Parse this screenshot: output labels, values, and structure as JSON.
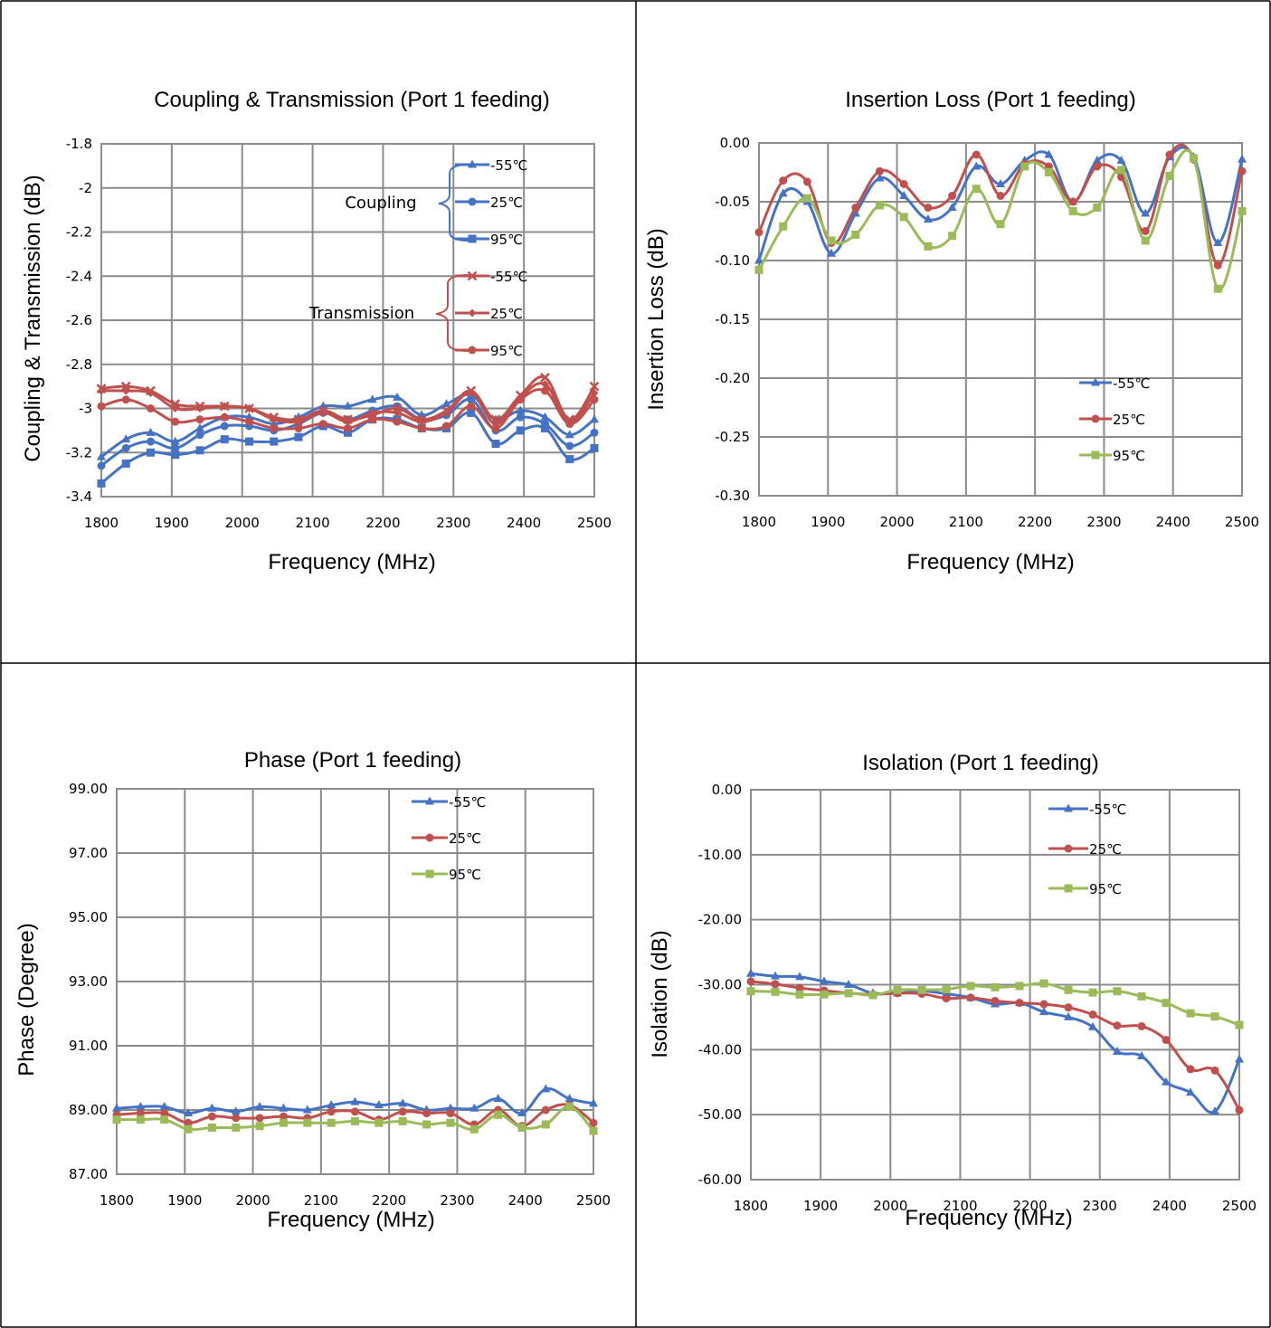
{
  "colors": {
    "blue": "#4472C4",
    "red": "#C0504D",
    "green": "#9BBB59",
    "grid": "#8c8c8c"
  },
  "chart_data": [
    {
      "id": "coupling",
      "type": "line",
      "title": "Coupling & Transmission (Port 1 feeding)",
      "xlabel": "Frequency (MHz)",
      "ylabel": "Coupling & Transmission (dB)",
      "xlim": [
        1800,
        2500
      ],
      "ylim": [
        -3.4,
        -1.8
      ],
      "xticks": [
        1800,
        1900,
        2000,
        2100,
        2200,
        2300,
        2400,
        2500
      ],
      "yticks": [
        -1.8,
        -2,
        -2.2,
        -2.4,
        -2.6,
        -2.8,
        -3,
        -3.2,
        -3.4
      ],
      "ytick_labels": [
        "-1.8",
        "-2",
        "-2.2",
        "-2.4",
        "-2.6",
        "-2.8",
        "-3",
        "-3.2",
        "-3.4"
      ],
      "grid": true,
      "legend_position": "top-right",
      "x": [
        1800,
        1835,
        1870,
        1905,
        1940,
        1975,
        2010,
        2045,
        2080,
        2115,
        2150,
        2185,
        2220,
        2255,
        2290,
        2325,
        2360,
        2395,
        2430,
        2465,
        2500
      ],
      "group_labels": [
        "Coupling",
        "Transmission"
      ],
      "series": [
        {
          "name": "-55℃",
          "group": "Coupling",
          "color": "blue",
          "marker": "triangle",
          "values": [
            -3.22,
            -3.14,
            -3.11,
            -3.15,
            -3.09,
            -3.04,
            -3.04,
            -3.07,
            -3.04,
            -2.99,
            -2.99,
            -2.96,
            -2.95,
            -3.03,
            -2.98,
            -2.94,
            -3.05,
            -3.01,
            -3.04,
            -3.12,
            -3.05
          ]
        },
        {
          "name": "25℃",
          "group": "Coupling",
          "color": "blue",
          "marker": "circle",
          "values": [
            -3.26,
            -3.18,
            -3.15,
            -3.18,
            -3.12,
            -3.08,
            -3.08,
            -3.1,
            -3.07,
            -3.02,
            -3.05,
            -3.01,
            -2.99,
            -3.05,
            -3.03,
            -2.96,
            -3.1,
            -3.04,
            -3.07,
            -3.17,
            -3.11
          ]
        },
        {
          "name": "95℃",
          "group": "Coupling",
          "color": "blue",
          "marker": "square",
          "values": [
            -3.34,
            -3.25,
            -3.2,
            -3.21,
            -3.19,
            -3.14,
            -3.15,
            -3.15,
            -3.13,
            -3.08,
            -3.11,
            -3.05,
            -3.05,
            -3.09,
            -3.09,
            -3.02,
            -3.16,
            -3.1,
            -3.09,
            -3.23,
            -3.18
          ]
        },
        {
          "name": "-55℃",
          "group": "Transmission",
          "color": "red",
          "marker": "x",
          "values": [
            -2.91,
            -2.9,
            -2.92,
            -2.98,
            -2.99,
            -2.99,
            -3.0,
            -3.04,
            -3.05,
            -3.01,
            -3.05,
            -3.03,
            -3.0,
            -3.05,
            -3.01,
            -2.92,
            -3.05,
            -2.94,
            -2.86,
            -3.05,
            -2.9
          ]
        },
        {
          "name": "25℃",
          "group": "Transmission",
          "color": "red",
          "marker": "diamond",
          "values": [
            -2.92,
            -2.92,
            -2.93,
            -3.0,
            -3.0,
            -2.99,
            -3.0,
            -3.05,
            -3.06,
            -3.02,
            -3.06,
            -3.02,
            -3.02,
            -3.06,
            -3.02,
            -2.93,
            -3.07,
            -2.95,
            -2.89,
            -3.06,
            -2.93
          ]
        },
        {
          "name": "95℃",
          "group": "Transmission",
          "color": "red",
          "marker": "circle",
          "values": [
            -2.99,
            -2.96,
            -3.0,
            -3.06,
            -3.05,
            -3.04,
            -3.06,
            -3.09,
            -3.09,
            -3.07,
            -3.09,
            -3.05,
            -3.06,
            -3.09,
            -3.08,
            -2.99,
            -3.09,
            -2.96,
            -2.92,
            -3.07,
            -2.96
          ]
        }
      ]
    },
    {
      "id": "insertion",
      "type": "line",
      "title": "Insertion Loss (Port 1 feeding)",
      "xlabel": "Frequency (MHz)",
      "ylabel": "Insertion Loss (dB)",
      "xlim": [
        1800,
        2500
      ],
      "ylim": [
        -0.3,
        0.0
      ],
      "xticks": [
        1800,
        1900,
        2000,
        2100,
        2200,
        2300,
        2400,
        2500
      ],
      "yticks": [
        0,
        -0.05,
        -0.1,
        -0.15,
        -0.2,
        -0.25,
        -0.3
      ],
      "ytick_labels": [
        "0.00",
        "-0.05",
        "-0.10",
        "-0.15",
        "-0.20",
        "-0.25",
        "-0.30"
      ],
      "grid": true,
      "legend_position": "bottom-right",
      "x": [
        1800,
        1835,
        1870,
        1905,
        1940,
        1975,
        2010,
        2045,
        2080,
        2115,
        2150,
        2185,
        2220,
        2255,
        2290,
        2325,
        2360,
        2395,
        2430,
        2465,
        2500
      ],
      "series": [
        {
          "name": "-55℃",
          "color": "blue",
          "marker": "triangle",
          "values": [
            -0.1,
            -0.043,
            -0.05,
            -0.094,
            -0.06,
            -0.03,
            -0.045,
            -0.065,
            -0.055,
            -0.02,
            -0.035,
            -0.015,
            -0.01,
            -0.05,
            -0.015,
            -0.015,
            -0.06,
            -0.012,
            -0.012,
            -0.085,
            -0.014
          ]
        },
        {
          "name": "25℃",
          "color": "red",
          "marker": "circle",
          "values": [
            -0.076,
            -0.032,
            -0.033,
            -0.085,
            -0.055,
            -0.024,
            -0.035,
            -0.055,
            -0.045,
            -0.01,
            -0.045,
            -0.018,
            -0.02,
            -0.05,
            -0.02,
            -0.029,
            -0.075,
            -0.01,
            -0.014,
            -0.104,
            -0.024
          ]
        },
        {
          "name": "95℃",
          "color": "green",
          "marker": "square",
          "values": [
            -0.108,
            -0.071,
            -0.047,
            -0.083,
            -0.078,
            -0.053,
            -0.063,
            -0.088,
            -0.079,
            -0.039,
            -0.069,
            -0.02,
            -0.025,
            -0.058,
            -0.055,
            -0.023,
            -0.083,
            -0.028,
            -0.013,
            -0.124,
            -0.058
          ]
        }
      ]
    },
    {
      "id": "phase",
      "type": "line",
      "title": "Phase (Port 1 feeding)",
      "xlabel": "Frequency (MHz)",
      "ylabel": "Phase (Degree)",
      "xlim": [
        1800,
        2500
      ],
      "ylim": [
        87,
        99
      ],
      "xticks": [
        1800,
        1900,
        2000,
        2100,
        2200,
        2300,
        2400,
        2500
      ],
      "yticks": [
        99,
        97,
        95,
        93,
        91,
        89,
        87
      ],
      "ytick_labels": [
        "99.00",
        "97.00",
        "95.00",
        "93.00",
        "91.00",
        "89.00",
        "87.00"
      ],
      "grid": true,
      "legend_position": "top-right",
      "x": [
        1800,
        1835,
        1870,
        1905,
        1940,
        1975,
        2010,
        2045,
        2080,
        2115,
        2150,
        2185,
        2220,
        2255,
        2290,
        2325,
        2360,
        2395,
        2430,
        2465,
        2500
      ],
      "series": [
        {
          "name": "-55℃",
          "color": "blue",
          "marker": "triangle",
          "values": [
            89.05,
            89.1,
            89.1,
            88.9,
            89.05,
            88.95,
            89.1,
            89.05,
            89.0,
            89.15,
            89.25,
            89.15,
            89.2,
            89.0,
            89.05,
            89.05,
            89.35,
            88.9,
            89.65,
            89.35,
            89.2
          ]
        },
        {
          "name": "25℃",
          "color": "red",
          "marker": "circle",
          "values": [
            88.85,
            88.9,
            88.9,
            88.6,
            88.8,
            88.75,
            88.75,
            88.8,
            88.75,
            88.95,
            88.95,
            88.7,
            88.95,
            88.9,
            88.9,
            88.55,
            89.0,
            88.5,
            89.0,
            89.15,
            88.6
          ]
        },
        {
          "name": "95℃",
          "color": "green",
          "marker": "square",
          "values": [
            88.7,
            88.7,
            88.7,
            88.4,
            88.45,
            88.45,
            88.5,
            88.6,
            88.6,
            88.6,
            88.65,
            88.6,
            88.65,
            88.55,
            88.6,
            88.4,
            88.85,
            88.45,
            88.55,
            89.1,
            88.35
          ]
        }
      ]
    },
    {
      "id": "isolation",
      "type": "line",
      "title": "Isolation (Port 1 feeding)",
      "xlabel": "Frequency (MHz)",
      "ylabel": "Isolation (dB)",
      "xlim": [
        1800,
        2500
      ],
      "ylim": [
        -60,
        0
      ],
      "xticks": [
        1800,
        1900,
        2000,
        2100,
        2200,
        2300,
        2400,
        2500
      ],
      "yticks": [
        0,
        -10,
        -20,
        -30,
        -40,
        -50,
        -60
      ],
      "ytick_labels": [
        "0.00",
        "-10.00",
        "-20.00",
        "-30.00",
        "-40.00",
        "-50.00",
        "-60.00"
      ],
      "grid": true,
      "legend_position": "top-right",
      "x": [
        1800,
        1835,
        1870,
        1905,
        1940,
        1975,
        2010,
        2045,
        2080,
        2115,
        2150,
        2185,
        2220,
        2255,
        2290,
        2325,
        2360,
        2395,
        2430,
        2465,
        2500
      ],
      "series": [
        {
          "name": "-55℃",
          "color": "blue",
          "marker": "triangle",
          "values": [
            -28.3,
            -28.7,
            -28.8,
            -29.5,
            -30.0,
            -31.3,
            -31.3,
            -31.0,
            -31.4,
            -32.0,
            -33.0,
            -32.8,
            -34.2,
            -35.0,
            -36.5,
            -40.3,
            -41.0,
            -45.0,
            -46.6,
            -49.5,
            -41.5
          ]
        },
        {
          "name": "25℃",
          "color": "red",
          "marker": "circle",
          "values": [
            -29.5,
            -29.9,
            -30.5,
            -30.9,
            -31.3,
            -31.5,
            -31.3,
            -31.4,
            -32.1,
            -32.0,
            -32.5,
            -32.8,
            -33.0,
            -33.5,
            -34.6,
            -36.3,
            -36.4,
            -38.5,
            -43.0,
            -43.2,
            -49.3
          ]
        },
        {
          "name": "95℃",
          "color": "green",
          "marker": "square",
          "values": [
            -31.0,
            -31.1,
            -31.5,
            -31.5,
            -31.3,
            -31.6,
            -30.8,
            -30.8,
            -30.7,
            -30.2,
            -30.4,
            -30.2,
            -29.8,
            -30.8,
            -31.2,
            -31.0,
            -31.8,
            -32.8,
            -34.4,
            -34.9,
            -36.2
          ]
        }
      ]
    }
  ]
}
